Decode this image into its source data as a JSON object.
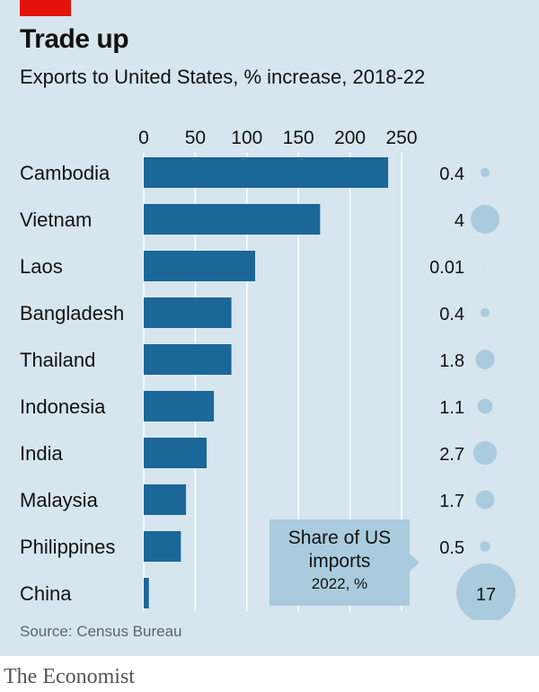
{
  "header": {
    "title": "Trade up",
    "subtitle": "Exports to United States, % increase, 2018-22"
  },
  "colors": {
    "bar": "#1b6797",
    "bubble": "#a9cbdd",
    "background": "#d6e5ee",
    "accent": "#e3120b",
    "gridline": "#ffffff"
  },
  "chart_data": {
    "type": "bar",
    "orientation": "horizontal",
    "title": "Trade up",
    "subtitle": "Exports to United States, % increase, 2018-22",
    "categories": [
      "Cambodia",
      "Vietnam",
      "Laos",
      "Bangladesh",
      "Thailand",
      "Indonesia",
      "India",
      "Malaysia",
      "Philippines",
      "China"
    ],
    "values": [
      237,
      171,
      108,
      85,
      85,
      68,
      61,
      41,
      36,
      5
    ],
    "xlim": [
      0,
      250
    ],
    "xticks": [
      "0",
      "50",
      "100",
      "150",
      "200",
      "250"
    ],
    "xtick_values": [
      0,
      50,
      100,
      150,
      200,
      250
    ],
    "grid": true,
    "share_of_us_imports": {
      "labels": [
        "0.4",
        "4",
        "0.01",
        "0.4",
        "1.8",
        "1.1",
        "2.7",
        "1.7",
        "0.5",
        "17"
      ],
      "values": [
        0.4,
        4,
        0.01,
        0.4,
        1.8,
        1.1,
        2.7,
        1.7,
        0.5,
        17
      ]
    }
  },
  "callout": {
    "line1": "Share of US",
    "line2": "imports",
    "line3": "2022, %"
  },
  "footer": {
    "source": "Source: Census Bureau",
    "brand": "The Economist"
  }
}
